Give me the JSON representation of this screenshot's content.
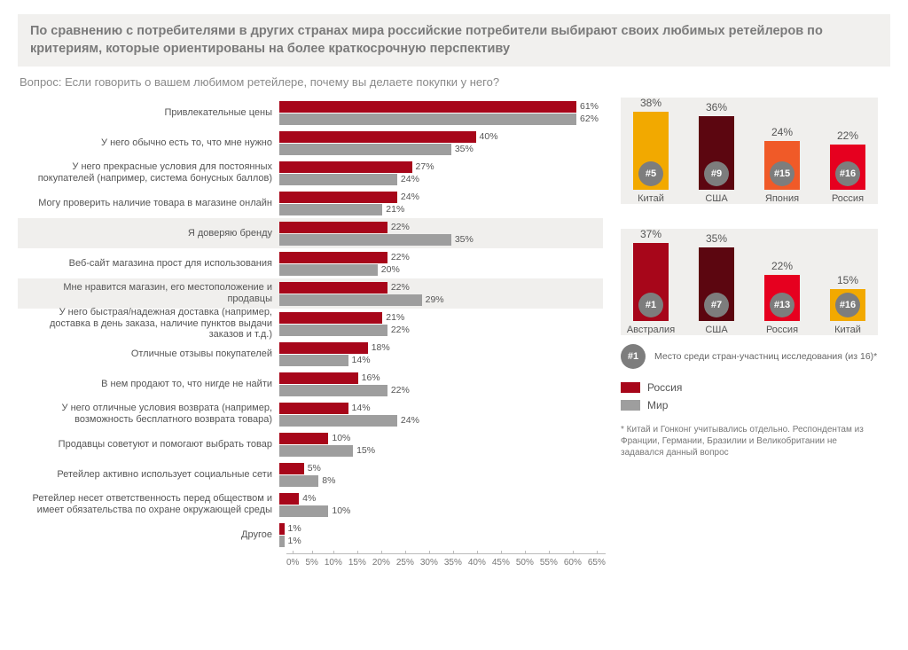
{
  "colors": {
    "russia": "#a7061a",
    "world": "#9e9e9e",
    "band_bg": "#f1f0ee",
    "text_muted": "#7a7a7a",
    "rank_badge": "#7d7d7d"
  },
  "title": "По сравнению с потребителями в других странах мира российские потребители выбирают своих любимых ретейлеров по критериям, которые ориентированы на более краткосрочную перспективу",
  "question": "Вопрос: Если говорить о вашем любимом ретейлере, почему вы делаете покупки у него?",
  "chart": {
    "type": "grouped_bar_horizontal",
    "xlim": [
      0,
      65
    ],
    "xtick_step": 5,
    "series": [
      {
        "name": "Россия",
        "color": "#a7061a"
      },
      {
        "name": "Мир",
        "color": "#9e9e9e"
      }
    ],
    "rows": [
      {
        "label": "Привлекательные цены",
        "russia": 61,
        "world": 62,
        "shade": false
      },
      {
        "label": "У него обычно есть то, что мне нужно",
        "russia": 40,
        "world": 35,
        "shade": false
      },
      {
        "label": "У него прекрасные условия для постоянных покупателей  (например, система бонусных баллов)",
        "russia": 27,
        "world": 24,
        "shade": false
      },
      {
        "label": "Могу проверить наличие товара в магазине онлайн",
        "russia": 24,
        "world": 21,
        "shade": false
      },
      {
        "label": "Я доверяю бренду",
        "russia": 22,
        "world": 35,
        "shade": true
      },
      {
        "label": "Веб-сайт магазина прост для использования",
        "russia": 22,
        "world": 20,
        "shade": false
      },
      {
        "label": "Мне нравится магазин, его местоположение и продавцы",
        "russia": 22,
        "world": 29,
        "shade": true
      },
      {
        "label": "У него быстрая/надежная доставка (например, доставка в день заказа, наличие пунктов выдачи заказов и т.д.)",
        "russia": 21,
        "world": 22,
        "shade": false
      },
      {
        "label": "Отличные отзывы покупателей",
        "russia": 18,
        "world": 14,
        "shade": false
      },
      {
        "label": "В нем продают то, что нигде не найти",
        "russia": 16,
        "world": 22,
        "shade": false
      },
      {
        "label": "У него отличные условия возврата (например, возможность бесплатного возврата товара)",
        "russia": 14,
        "world": 24,
        "shade": false
      },
      {
        "label": "Продавцы советуют и помогают выбрать товар",
        "russia": 10,
        "world": 15,
        "shade": false
      },
      {
        "label": "Ретейлер активно использует социальные сети",
        "russia": 5,
        "world": 8,
        "shade": false
      },
      {
        "label": "Ретейлер несет ответственность перед обществом и имеет обязательства по охране окружающей среды",
        "russia": 4,
        "world": 10,
        "shade": false
      },
      {
        "label": "Другое",
        "russia": 1,
        "world": 1,
        "shade": false
      }
    ]
  },
  "side_panels": [
    {
      "shade": true,
      "max_pct": 38,
      "bars": [
        {
          "country": "Китай",
          "pct": 38,
          "rank": "#5",
          "color": "#f2a900"
        },
        {
          "country": "США",
          "pct": 36,
          "rank": "#9",
          "color": "#5c0610"
        },
        {
          "country": "Япония",
          "pct": 24,
          "rank": "#15",
          "color": "#f05a28"
        },
        {
          "country": "Россия",
          "pct": 22,
          "rank": "#16",
          "color": "#e6001f"
        }
      ]
    },
    {
      "shade": true,
      "max_pct": 37,
      "bars": [
        {
          "country": "Австралия",
          "pct": 37,
          "rank": "#1",
          "color": "#a7061a"
        },
        {
          "country": "США",
          "pct": 35,
          "rank": "#7",
          "color": "#5c0610"
        },
        {
          "country": "Россия",
          "pct": 22,
          "rank": "#13",
          "color": "#e6001f"
        },
        {
          "country": "Китай",
          "pct": 15,
          "rank": "#16",
          "color": "#f2a900"
        }
      ]
    }
  ],
  "legend_note": {
    "badge": "#1",
    "text": "Место среди стран-участниц исследования (из 16)*"
  },
  "color_legend": [
    {
      "label": "Россия",
      "color": "#a7061a"
    },
    {
      "label": "Мир",
      "color": "#9e9e9e"
    }
  ],
  "footnote": "* Китай и Гонконг учитывались отдельно. Респондентам из Франции, Германии, Бразилии и Великобритании не задавался данный вопрос",
  "axis_labels": [
    "0%",
    "5%",
    "10%",
    "15%",
    "20%",
    "25%",
    "30%",
    "35%",
    "40%",
    "45%",
    "50%",
    "55%",
    "60%",
    "65%"
  ]
}
